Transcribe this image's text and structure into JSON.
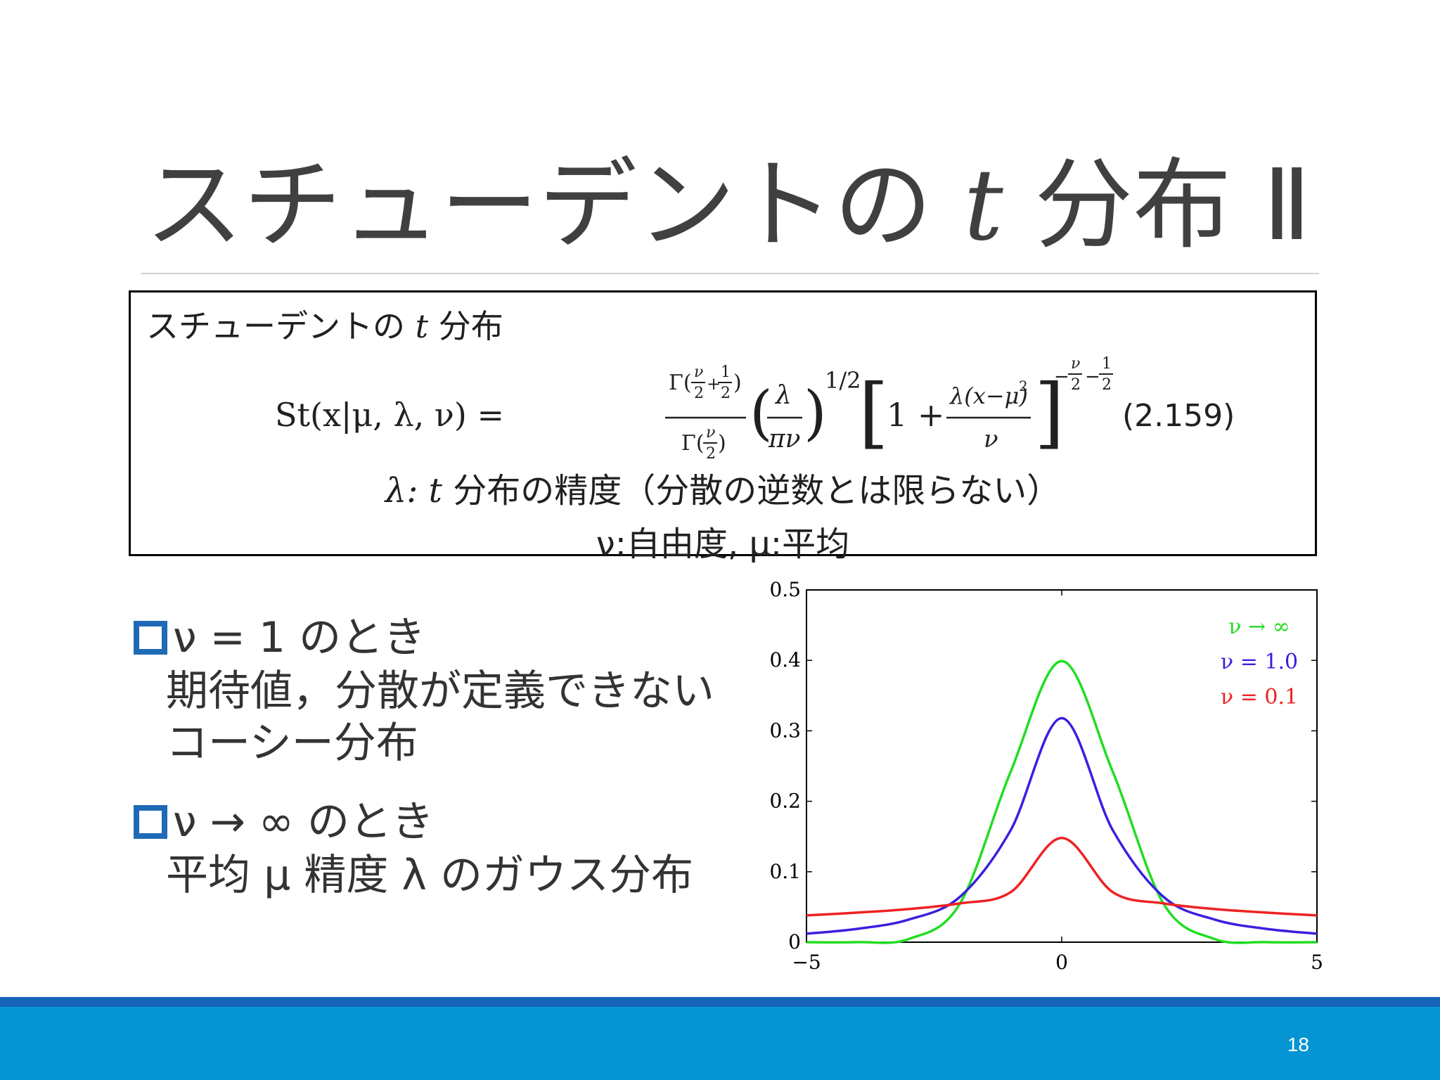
{
  "slide": {
    "title_prefix": "スチューデントの",
    "title_var": "t",
    "title_suffix": "分布 Ⅱ",
    "page_number": "18"
  },
  "definition_box": {
    "heading_prefix": "スチューデントの",
    "heading_var": "t",
    "heading_suffix": "分布",
    "formula_lhs": "St(x|μ, λ, ν) =",
    "formula_number": "(2.159)",
    "precision_note_prefix": "λ: ",
    "precision_note_var": "t",
    "precision_note_text": " 分布の精度（分散の逆数とは限らない）",
    "dof_note": "ν:自由度, μ:平均"
  },
  "bullets": [
    {
      "heading": "ν = 1 のとき",
      "lines": [
        "期待値，分散が定義できない",
        "コーシー分布"
      ]
    },
    {
      "heading": "ν → ∞ のとき",
      "lines": [
        "平均 μ 精度 λ のガウス分布"
      ]
    }
  ],
  "chart_data": {
    "type": "line",
    "xlim": [
      -5,
      5
    ],
    "ylim": [
      0,
      0.5
    ],
    "x_ticks": [
      "−5",
      "0",
      "5"
    ],
    "y_ticks": [
      "0",
      "0.1",
      "0.2",
      "0.3",
      "0.4",
      "0.5"
    ],
    "legend_position": "top-right",
    "series": [
      {
        "name": "ν → ∞",
        "color": "#22dd22",
        "nu": "inf",
        "x": [
          -5,
          -4,
          -3,
          -2,
          -1,
          0,
          1,
          2,
          3,
          4,
          5
        ],
        "y": [
          0.0,
          0.0001,
          0.0044,
          0.054,
          0.242,
          0.399,
          0.242,
          0.054,
          0.0044,
          0.0001,
          0.0
        ]
      },
      {
        "name": "ν = 1.0",
        "color": "#3a1fe0",
        "nu": 1.0,
        "x": [
          -5,
          -4,
          -3,
          -2,
          -1,
          0,
          1,
          2,
          3,
          4,
          5
        ],
        "y": [
          0.012,
          0.019,
          0.032,
          0.064,
          0.159,
          0.318,
          0.159,
          0.064,
          0.032,
          0.019,
          0.012
        ]
      },
      {
        "name": "ν = 0.1",
        "color": "#ee2222",
        "nu": 0.1,
        "x": [
          -5,
          -4,
          -3,
          -2,
          -1,
          0,
          1,
          2,
          3,
          4,
          5
        ],
        "y": [
          0.038,
          0.042,
          0.047,
          0.055,
          0.071,
          0.148,
          0.071,
          0.055,
          0.047,
          0.042,
          0.038
        ]
      }
    ]
  }
}
